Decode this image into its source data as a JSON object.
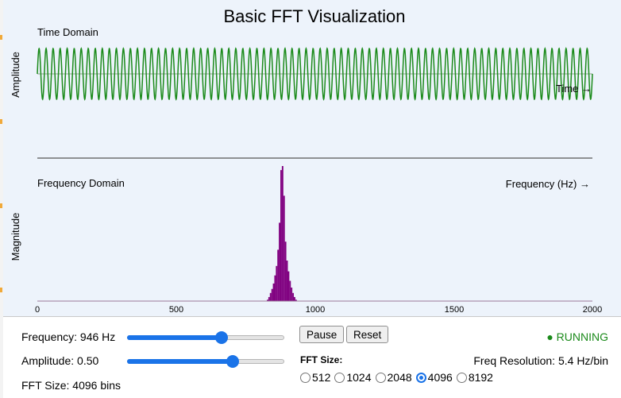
{
  "title": "Basic FFT Visualization",
  "time_domain": {
    "label": "Time Domain",
    "y_label": "Amplitude",
    "x_label": "Time →",
    "line_color": "#1a8a1a"
  },
  "frequency_domain": {
    "label": "Frequency Domain",
    "y_label": "Magnitude",
    "x_label": "Frequency (Hz) →",
    "bar_color": "#800080"
  },
  "chart_data": {
    "type": "bar",
    "xlim": [
      0,
      2000
    ],
    "ticks": [
      "0",
      "500",
      "1000",
      "1500",
      "2000"
    ],
    "peak_hz": 946
  },
  "controls": {
    "frequency_label": "Frequency: 946 Hz",
    "frequency_fraction": 0.6,
    "amplitude_label": "Amplitude: 0.50",
    "amplitude_fraction": 0.67,
    "fft_size_label": "FFT Size: 4096 bins",
    "pause_label": "Pause",
    "reset_label": "Reset",
    "fft_size_group_label": "FFT Size:",
    "fft_options": [
      "512",
      "1024",
      "2048",
      "4096",
      "8192"
    ],
    "fft_selected": "4096",
    "status": "● RUNNING",
    "resolution": "Freq Resolution: 5.4 Hz/bin",
    "accent_color": "#1a73e8"
  }
}
